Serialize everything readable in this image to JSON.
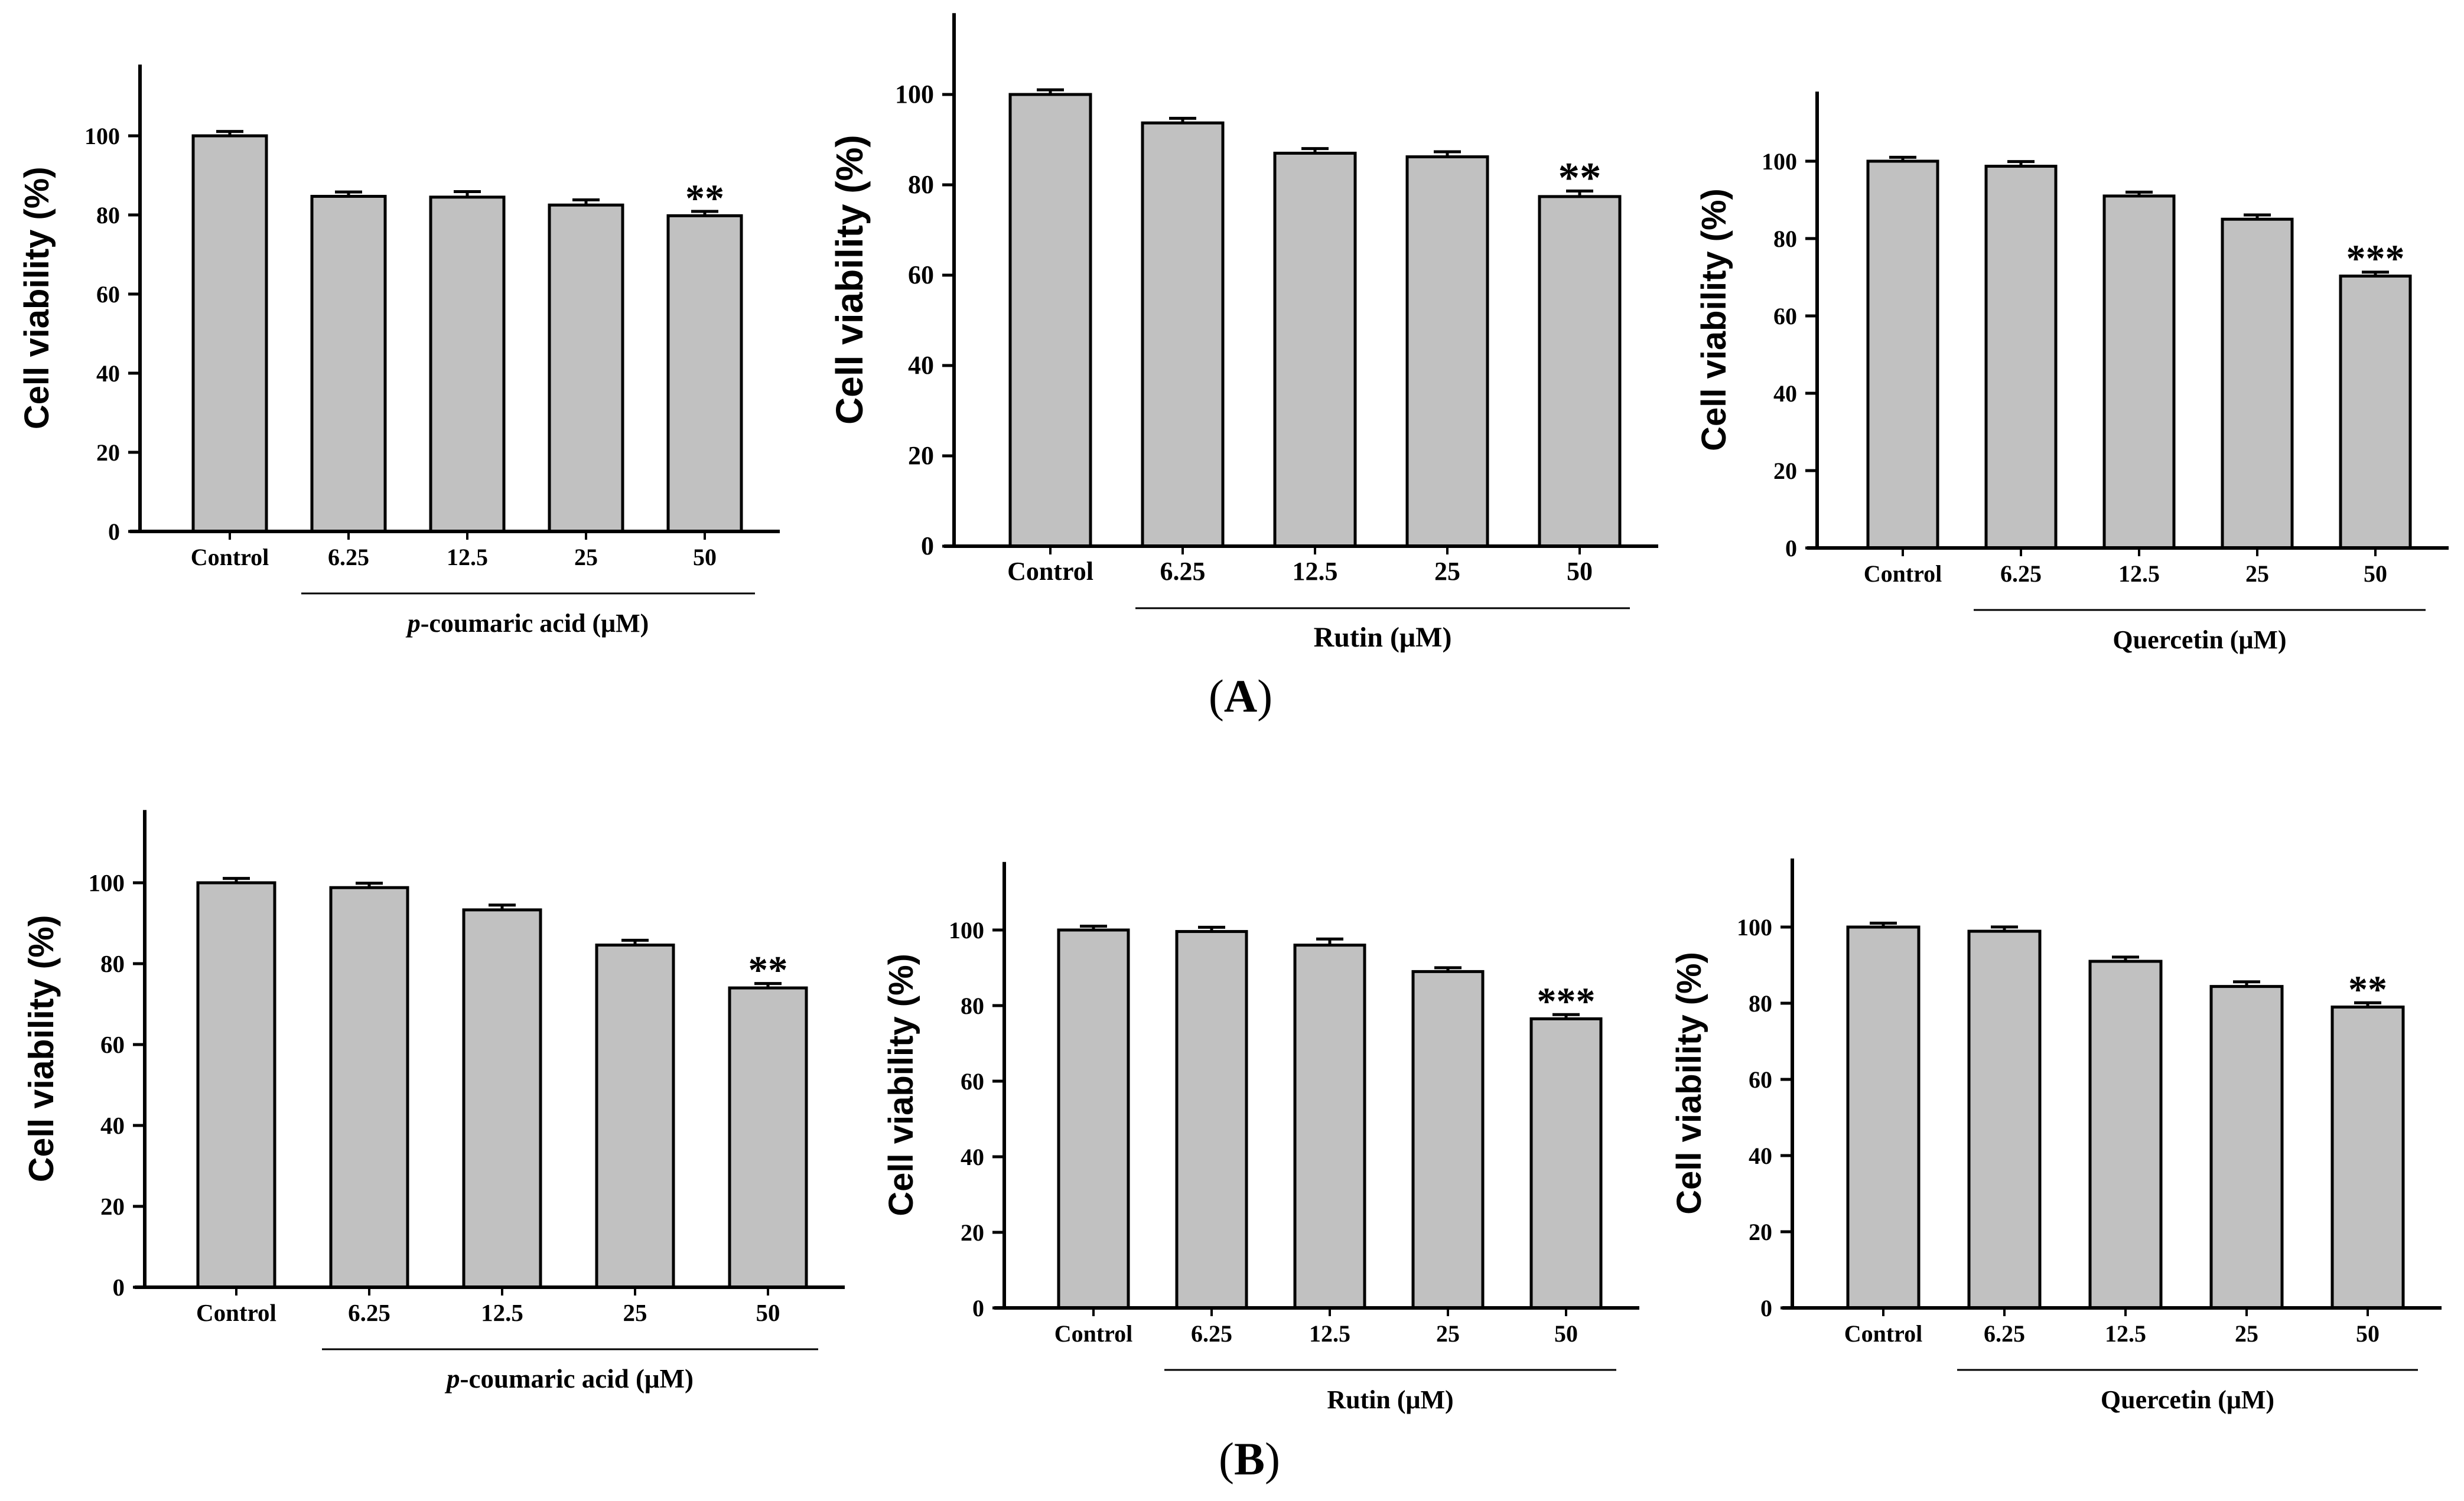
{
  "colors": {
    "background": "#ffffff",
    "bar_fill": "#c1c1c1",
    "bar_stroke": "#000000",
    "axis": "#000000",
    "text": "#000000"
  },
  "panel_labels": [
    {
      "open": "(",
      "letter": "A",
      "close": ")"
    },
    {
      "open": "(",
      "letter": "B",
      "close": ")"
    }
  ],
  "chart_data": [
    {
      "id": "A-p-coumaric-acid",
      "panel": "A",
      "type": "bar",
      "ylabel": "Cell viability (%)",
      "group_label": "p-coumaric acid (μM)",
      "group_label_italic_prefix": "p",
      "group_label_rest": "-coumaric acid (μM)",
      "categories": [
        "Control",
        "6.25",
        "12.5",
        "25",
        "50"
      ],
      "values": [
        100,
        84.7,
        84.5,
        82.5,
        79.8
      ],
      "errors": [
        0.5,
        0.5,
        0.8,
        0.7,
        0.5
      ],
      "significance": [
        "",
        "",
        "",
        "",
        "**"
      ],
      "ylim": [
        0,
        118
      ],
      "yticks": [
        0,
        20,
        40,
        60,
        80,
        100
      ],
      "grid": false,
      "legend": false
    },
    {
      "id": "A-rutin",
      "panel": "A",
      "type": "bar",
      "ylabel": "Cell viability (%)",
      "group_label": "Rutin (μM)",
      "group_label_italic_prefix": "",
      "group_label_rest": "Rutin (μM)",
      "categories": [
        "Control",
        "6.25",
        "12.5",
        "25",
        "50"
      ],
      "values": [
        100,
        93.7,
        87,
        86.2,
        77.4
      ],
      "errors": [
        0.5,
        0.5,
        0.5,
        0.6,
        0.7
      ],
      "significance": [
        "",
        "",
        "",
        "",
        "**"
      ],
      "ylim": [
        0,
        118
      ],
      "yticks": [
        0,
        20,
        40,
        60,
        80,
        100
      ],
      "grid": false,
      "legend": false
    },
    {
      "id": "A-quercetin",
      "panel": "A",
      "type": "bar",
      "ylabel": "Cell viability (%)",
      "group_label": "Quercetin (μM)",
      "group_label_italic_prefix": "",
      "group_label_rest": "Quercetin (μM)",
      "categories": [
        "Control",
        "6.25",
        "12.5",
        "25",
        "50"
      ],
      "values": [
        100,
        98.7,
        91,
        85,
        70.3
      ],
      "errors": [
        0.4,
        0.6,
        0.4,
        0.5,
        0.4
      ],
      "significance": [
        "",
        "",
        "",
        "",
        "***"
      ],
      "ylim": [
        0,
        118
      ],
      "yticks": [
        0,
        20,
        40,
        60,
        80,
        100
      ],
      "grid": false,
      "legend": false
    },
    {
      "id": "B-p-coumaric-acid",
      "panel": "B",
      "type": "bar",
      "ylabel": "Cell viability (%)",
      "group_label": "p-coumaric acid (μM)",
      "group_label_italic_prefix": "p",
      "group_label_rest": "-coumaric acid (μM)",
      "categories": [
        "Control",
        "6.25",
        "12.5",
        "25",
        "50"
      ],
      "values": [
        100,
        98.8,
        93.3,
        84.6,
        74
      ],
      "errors": [
        0.5,
        0.5,
        0.6,
        0.6,
        0.5
      ],
      "significance": [
        "",
        "",
        "",
        "",
        "**"
      ],
      "ylim": [
        0,
        118
      ],
      "yticks": [
        0,
        20,
        40,
        60,
        80,
        100
      ],
      "grid": false,
      "legend": false
    },
    {
      "id": "B-rutin",
      "panel": "B",
      "type": "bar",
      "ylabel": "Cell viability (%)",
      "group_label": "Rutin (μM)",
      "group_label_italic_prefix": "",
      "group_label_rest": "Rutin (μM)",
      "categories": [
        "Control",
        "6.25",
        "12.5",
        "25",
        "50"
      ],
      "values": [
        100,
        99.6,
        96,
        89,
        76.5
      ],
      "errors": [
        0.4,
        0.5,
        1.0,
        0.4,
        0.5
      ],
      "significance": [
        "",
        "",
        "",
        "",
        "***"
      ],
      "ylim": [
        0,
        118
      ],
      "yticks": [
        0,
        20,
        40,
        60,
        80,
        100
      ],
      "grid": false,
      "legend": false
    },
    {
      "id": "B-quercetin",
      "panel": "B",
      "type": "bar",
      "ylabel": "Cell viability (%)",
      "group_label": "Quercetin (μM)",
      "group_label_italic_prefix": "",
      "group_label_rest": "Quercetin (μM)",
      "categories": [
        "Control",
        "6.25",
        "12.5",
        "25",
        "50"
      ],
      "values": [
        100,
        98.9,
        91,
        84.4,
        79
      ],
      "errors": [
        0.4,
        0.5,
        0.5,
        0.6,
        0.5
      ],
      "significance": [
        "",
        "",
        "",
        "",
        "**"
      ],
      "ylim": [
        0,
        118
      ],
      "yticks": [
        0,
        20,
        40,
        60,
        80,
        100
      ],
      "grid": false,
      "legend": false
    }
  ]
}
